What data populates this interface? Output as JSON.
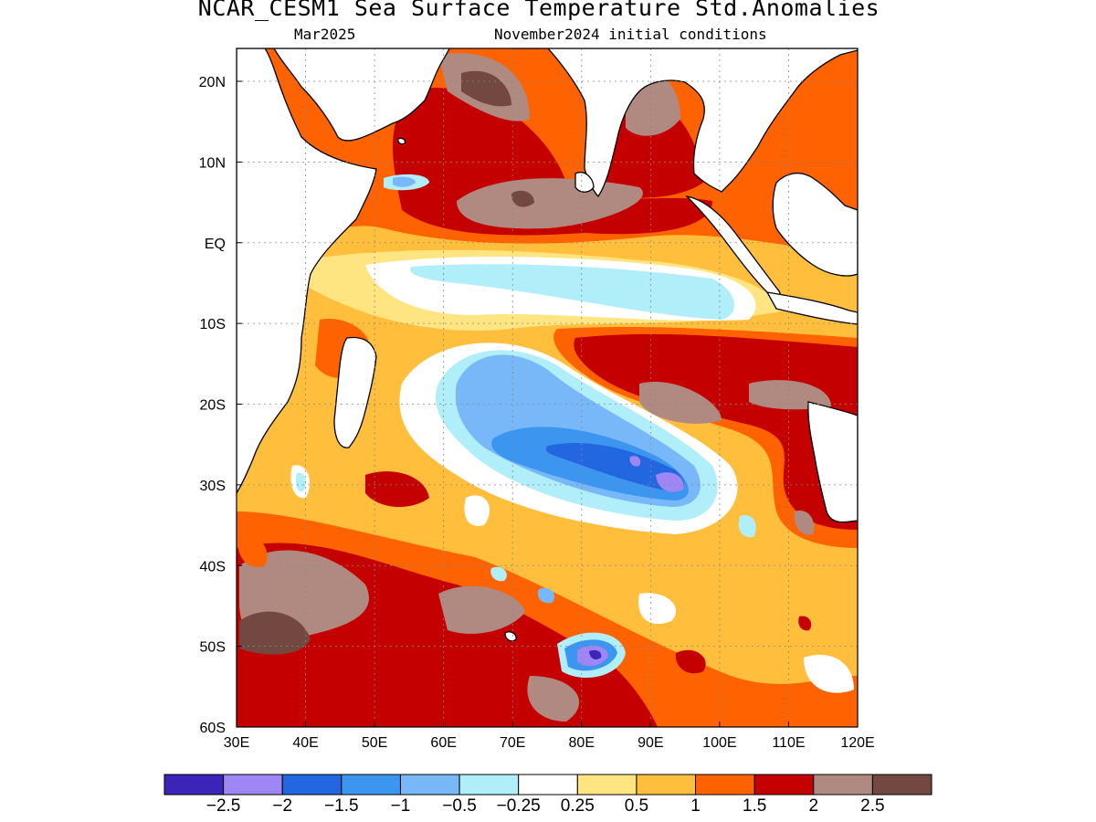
{
  "header": {
    "title": "NCAR_CESM1 Sea Surface Temperature Std.Anomalies",
    "subtitle_left": "Mar2025",
    "subtitle_right": "November2024 initial conditions"
  },
  "map": {
    "lon_ticks": [
      "30E",
      "40E",
      "50E",
      "60E",
      "70E",
      "80E",
      "90E",
      "100E",
      "110E",
      "120E"
    ],
    "lat_ticks": [
      "20N",
      "10N",
      "EQ",
      "10S",
      "20S",
      "30S",
      "40S",
      "50S",
      "60S"
    ],
    "land_color": "#ffffff",
    "coast_color": "#000000"
  },
  "colorbar": {
    "colors": [
      "#3b25b8",
      "#9e86f4",
      "#2266e0",
      "#3c96f0",
      "#78b8f8",
      "#b0eefa",
      "#ffffff",
      "#ffe482",
      "#ffbe3c",
      "#ff6200",
      "#c40000",
      "#b08a80",
      "#734840"
    ],
    "labels": [
      "-2.5",
      "-2",
      "-1.5",
      "-1",
      "-0.5",
      "-0.25",
      "0.25",
      "0.5",
      "1",
      "1.5",
      "2",
      "2.5"
    ]
  },
  "anomaly_colors": {
    "strong_warm": "#734840",
    "warm_2": "#b08a80",
    "warm_15": "#c40000",
    "warm_1": "#ff6200",
    "warm_05": "#ffbe3c",
    "warm_025": "#ffe482",
    "neutral": "#ffffff",
    "cool_025": "#b0eefa",
    "cool_05": "#78b8f8",
    "cool_1": "#3c96f0",
    "cool_15": "#2266e0",
    "cool_2": "#9e86f4",
    "cool_25": "#3b25b8"
  }
}
